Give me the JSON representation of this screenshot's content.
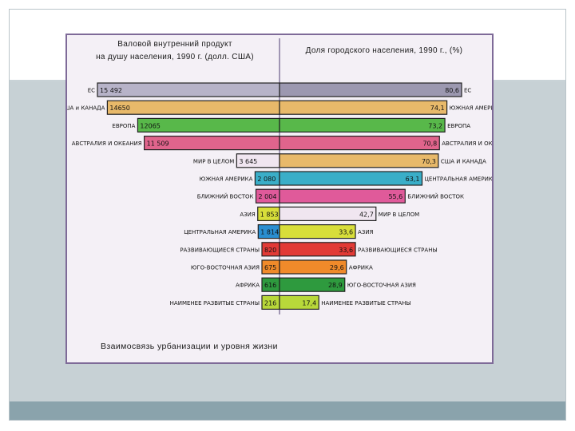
{
  "chart_data": {
    "type": "bar",
    "left_panel": {
      "title_line1": "Валовой внутренний продукт",
      "title_line2": "на душу населения, 1990 г. (долл. США)",
      "rows": [
        {
          "label": "ЕС",
          "value": 15492,
          "display": "15 492",
          "color": "#b7b3c8"
        },
        {
          "label": "США и КАНАДА",
          "value": 14650,
          "display": "14650",
          "color": "#e8b96a"
        },
        {
          "label": "ЕВРОПА",
          "value": 12065,
          "display": "12065",
          "color": "#58b84a"
        },
        {
          "label": "АВСТРАЛИЯ И ОКЕАНИЯ",
          "value": 11509,
          "display": "11 509",
          "color": "#e0648c"
        },
        {
          "label": "МИР В ЦЕЛОМ",
          "value": 3645,
          "display": "3 645",
          "color": "#f0e6f0"
        },
        {
          "label": "ЮЖНАЯ АМЕРИКА",
          "value": 2080,
          "display": "2 080",
          "color": "#3aaec8"
        },
        {
          "label": "БЛИЖНИЙ ВОСТОК",
          "value": 2004,
          "display": "2 004",
          "color": "#e05a9a"
        },
        {
          "label": "АЗИЯ",
          "value": 1853,
          "display": "1 853",
          "color": "#d8de3a"
        },
        {
          "label": "ЦЕНТРАЛЬНАЯ АМЕРИКА",
          "value": 1814,
          "display": "1 814",
          "color": "#2a8ed0"
        },
        {
          "label": "РАЗВИВАЮЩИЕСЯ СТРАНЫ",
          "value": 820,
          "display": "820",
          "color": "#e23a36"
        },
        {
          "label": "ЮГО-ВОСТОЧНАЯ АЗИЯ",
          "value": 675,
          "display": "675",
          "color": "#f08a2a"
        },
        {
          "label": "АФРИКА",
          "value": 616,
          "display": "616",
          "color": "#2e9a3e"
        },
        {
          "label": "НАИМЕНЕЕ РАЗВИТЫЕ СТРАНЫ",
          "value": 216,
          "display": "216",
          "color": "#b8d83a"
        }
      ]
    },
    "right_panel": {
      "title": "Доля городского населения, 1990 г., (%)",
      "rows": [
        {
          "label": "ЕС",
          "value": 80.6,
          "display": "80,6",
          "color": "#9c98b0"
        },
        {
          "label": "ЮЖНАЯ АМЕРИКА",
          "value": 74.1,
          "display": "74,1",
          "color": "#e8b96a"
        },
        {
          "label": "ЕВРОПА",
          "value": 73.2,
          "display": "73,2",
          "color": "#58b84a"
        },
        {
          "label": "АВСТРАЛИЯ И ОКЕАНИЯ",
          "value": 70.8,
          "display": "70,8",
          "color": "#e0648c"
        },
        {
          "label": "США И КАНАДА",
          "value": 70.3,
          "display": "70,3",
          "color": "#e8b96a"
        },
        {
          "label": "ЦЕНТРАЛЬНАЯ АМЕРИКА",
          "value": 63.1,
          "display": "63,1",
          "color": "#3aaec8"
        },
        {
          "label": "БЛИЖНИЙ ВОСТОК",
          "value": 55.6,
          "display": "55,6",
          "color": "#e05a9a"
        },
        {
          "label": "МИР В ЦЕЛОМ",
          "value": 42.7,
          "display": "42,7",
          "color": "#f0e6f0"
        },
        {
          "label": "АЗИЯ",
          "value": 33.6,
          "display": "33,6",
          "color": "#d8de3a"
        },
        {
          "label": "РАЗВИВАЮЩИЕСЯ СТРАНЫ",
          "value": 33.6,
          "display": "33,6",
          "color": "#e23a36"
        },
        {
          "label": "АФРИКА",
          "value": 29.6,
          "display": "29,6",
          "color": "#f08a2a"
        },
        {
          "label": "ЮГО-ВОСТОЧНАЯ АЗИЯ",
          "value": 28.9,
          "display": "28,9",
          "color": "#2e9a3e"
        },
        {
          "label": "НАИМЕНЕЕ РАЗВИТЫЕ СТРАНЫ",
          "value": 17.4,
          "display": "17,4",
          "color": "#b8d83a"
        }
      ]
    },
    "caption": "Взаимосвязь урбанизации и уровня жизни"
  }
}
